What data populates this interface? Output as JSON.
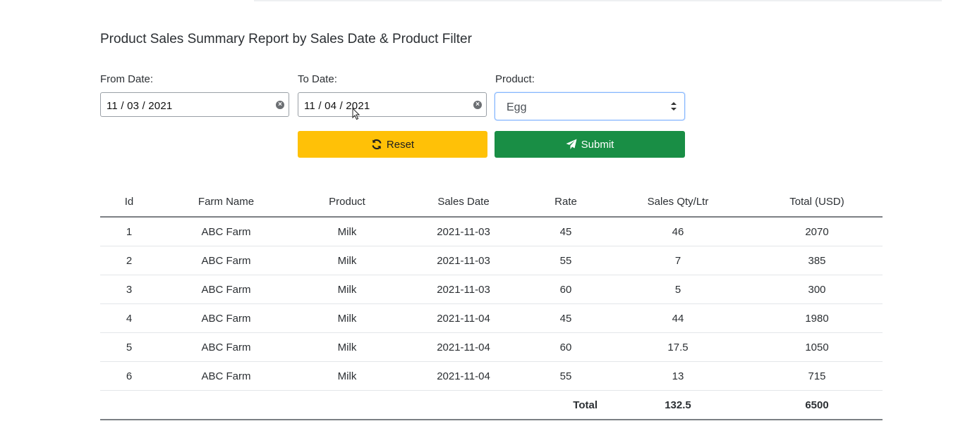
{
  "report": {
    "title": "Product Sales Summary Report by Sales Date & Product Filter"
  },
  "filters": {
    "from_date": {
      "label": "From Date:",
      "value": "11 / 03 / 2021"
    },
    "to_date": {
      "label": "To Date:",
      "value": "11 / 04 / 2021"
    },
    "product": {
      "label": "Product:",
      "selected": "Egg"
    }
  },
  "buttons": {
    "reset_label": "Reset",
    "submit_label": "Submit"
  },
  "icons": {
    "clear": "clear-icon",
    "reset": "refresh-icon",
    "submit": "paper-plane-icon",
    "select_caret": "sort-caret-icon",
    "cursor": "mouse-cursor-icon"
  },
  "colors": {
    "reset_button": "#ffc107",
    "submit_button": "#198e45",
    "select_focus_border": "#86b7fe"
  },
  "table": {
    "headers": [
      "Id",
      "Farm Name",
      "Product",
      "Sales Date",
      "Rate",
      "Sales Qty/Ltr",
      "Total (USD)"
    ],
    "rows": [
      {
        "id": "1",
        "farm": "ABC Farm",
        "product": "Milk",
        "date": "2021-11-03",
        "rate": "45",
        "qty": "46",
        "total": "2070"
      },
      {
        "id": "2",
        "farm": "ABC Farm",
        "product": "Milk",
        "date": "2021-11-03",
        "rate": "55",
        "qty": "7",
        "total": "385"
      },
      {
        "id": "3",
        "farm": "ABC Farm",
        "product": "Milk",
        "date": "2021-11-03",
        "rate": "60",
        "qty": "5",
        "total": "300"
      },
      {
        "id": "4",
        "farm": "ABC Farm",
        "product": "Milk",
        "date": "2021-11-04",
        "rate": "45",
        "qty": "44",
        "total": "1980"
      },
      {
        "id": "5",
        "farm": "ABC Farm",
        "product": "Milk",
        "date": "2021-11-04",
        "rate": "60",
        "qty": "17.5",
        "total": "1050"
      },
      {
        "id": "6",
        "farm": "ABC Farm",
        "product": "Milk",
        "date": "2021-11-04",
        "rate": "55",
        "qty": "13",
        "total": "715"
      }
    ],
    "totals": {
      "label": "Total",
      "qty": "132.5",
      "amount": "6500"
    }
  }
}
